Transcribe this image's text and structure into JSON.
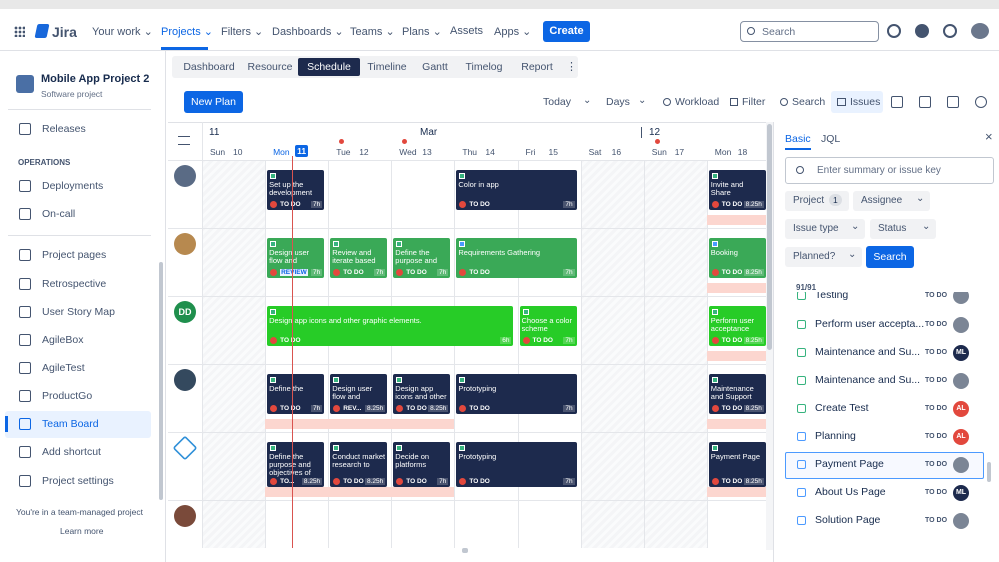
{
  "nav": {
    "logo": "Jira",
    "items": [
      "Your work",
      "Projects",
      "Filters",
      "Dashboards",
      "Teams",
      "Plans",
      "Assets",
      "Apps"
    ],
    "create": "Create",
    "search": "Search"
  },
  "sidebar": {
    "project": "Mobile App Project 2",
    "project_type": "Software project",
    "items": [
      "Releases"
    ],
    "section": "OPERATIONS",
    "ops": [
      "Deployments",
      "On-call"
    ],
    "tools": [
      "Project pages",
      "Retrospective",
      "User Story Map",
      "AgileBox",
      "AgileTest",
      "ProductGo",
      "Team Board",
      "Add shortcut",
      "Project settings"
    ],
    "footer": "You're in a team-managed project",
    "learn_more": "Learn more"
  },
  "tabs": [
    "Dashboard",
    "Resource",
    "Schedule",
    "Timeline",
    "Gantt",
    "Timelog",
    "Report"
  ],
  "toolbar": {
    "new_plan": "New Plan",
    "today": "Today",
    "days": "Days",
    "workload": "Workload",
    "filter": "Filter",
    "search": "Search",
    "issues": "Issues"
  },
  "timeline": {
    "week_labels": [
      "11",
      "Mar",
      "12"
    ],
    "days": [
      {
        "name": "Sun",
        "date": "10"
      },
      {
        "name": "Mon",
        "date": "11"
      },
      {
        "name": "Tue",
        "date": "12"
      },
      {
        "name": "Wed",
        "date": "13"
      },
      {
        "name": "Thu",
        "date": "14"
      },
      {
        "name": "Fri",
        "date": "15"
      },
      {
        "name": "Sat",
        "date": "16"
      },
      {
        "name": "Sun",
        "date": "17"
      },
      {
        "name": "Mon",
        "date": "18"
      }
    ],
    "rows": [
      {
        "cards": [
          {
            "title": "Set up the development",
            "status": "TO DO",
            "hours": "7h",
            "color": "#1d2a4d"
          },
          {
            "title": "Color in app",
            "status": "TO DO",
            "hours": "7h",
            "color": "#1d2a4d"
          },
          {
            "title": "Invite and Share",
            "status": "TO DO",
            "hours": "8.25h",
            "color": "#1d2a4d"
          }
        ]
      },
      {
        "cards": [
          {
            "title": "Design user flow and",
            "status": "REVIEW",
            "hours": "7h",
            "color": "#3aa957"
          },
          {
            "title": "Review and iterate based",
            "status": "TO DO",
            "hours": "7h",
            "color": "#3aa957"
          },
          {
            "title": "Define the purpose and",
            "status": "TO DO",
            "hours": "7h",
            "color": "#3aa957"
          },
          {
            "title": "Requirements Gathering",
            "status": "TO DO",
            "hours": "7h",
            "color": "#3aa957"
          },
          {
            "title": "Booking",
            "status": "TO DO",
            "hours": "8.25h",
            "color": "#3aa957"
          }
        ]
      },
      {
        "avatar": "DD",
        "cards": [
          {
            "title": "Design app icons and other graphic elements.",
            "status": "TO DO",
            "hours": "6h",
            "color": "#27cc27"
          },
          {
            "title": "Choose a color scheme",
            "status": "TO DO",
            "hours": "7h",
            "color": "#27cc27"
          },
          {
            "title": "Perform user acceptance testing",
            "status": "TO DO",
            "hours": "8.25h",
            "color": "#27cc27"
          }
        ]
      },
      {
        "cards": [
          {
            "title": "Define the",
            "status": "TO DO",
            "hours": "7h",
            "color": "#1d2a4d"
          },
          {
            "title": "Design user flow and navigation.",
            "status": "REV...",
            "hours": "8.25h",
            "color": "#1d2a4d"
          },
          {
            "title": "Design app icons and other graphic",
            "status": "TO DO",
            "hours": "8.25h",
            "color": "#1d2a4d"
          },
          {
            "title": "Prototyping",
            "status": "TO DO",
            "hours": "7h",
            "color": "#1d2a4d"
          },
          {
            "title": "Maintenance and Support",
            "status": "TO DO",
            "hours": "8.25h",
            "color": "#1d2a4d"
          }
        ]
      },
      {
        "cards": [
          {
            "title": "Define the purpose and objectives of",
            "status": "TO...",
            "hours": "8.25h",
            "color": "#1d2a4d"
          },
          {
            "title": "Conduct market research to",
            "status": "TO DO",
            "hours": "8.25h",
            "color": "#1d2a4d"
          },
          {
            "title": "Decide on platforms",
            "status": "TO DO",
            "hours": "7h",
            "color": "#1d2a4d"
          },
          {
            "title": "Prototyping",
            "status": "TO DO",
            "hours": "7h",
            "color": "#1d2a4d"
          },
          {
            "title": "Payment Page",
            "status": "TO DO",
            "hours": "8.25h",
            "color": "#1d2a4d"
          }
        ]
      },
      {
        "cards": []
      }
    ]
  },
  "panel": {
    "tabs": [
      "Basic",
      "JQL"
    ],
    "placeholder": "Enter summary or issue key",
    "filters": [
      {
        "label": "Project",
        "count": 1
      },
      {
        "label": "Assignee"
      },
      {
        "label": "Issue type"
      },
      {
        "label": "Status"
      },
      {
        "label": "Planned?"
      }
    ],
    "search": "Search",
    "count": "91/91",
    "issues": [
      {
        "name": "Testing",
        "status": "TO DO"
      },
      {
        "name": "Perform user accepta...",
        "status": "TO DO"
      },
      {
        "name": "Maintenance and Su...",
        "status": "TO DO",
        "avatar": "ML"
      },
      {
        "name": "Maintenance and Su...",
        "status": "TO DO"
      },
      {
        "name": "Create Test",
        "status": "TO DO",
        "avatar": "AL"
      },
      {
        "name": "Planning",
        "status": "TO DO",
        "avatar": "AL"
      },
      {
        "name": "Payment Page",
        "status": "TO DO"
      },
      {
        "name": "About Us Page",
        "status": "TO DO",
        "avatar": "ML"
      },
      {
        "name": "Solution Page",
        "status": "TO DO"
      }
    ]
  }
}
